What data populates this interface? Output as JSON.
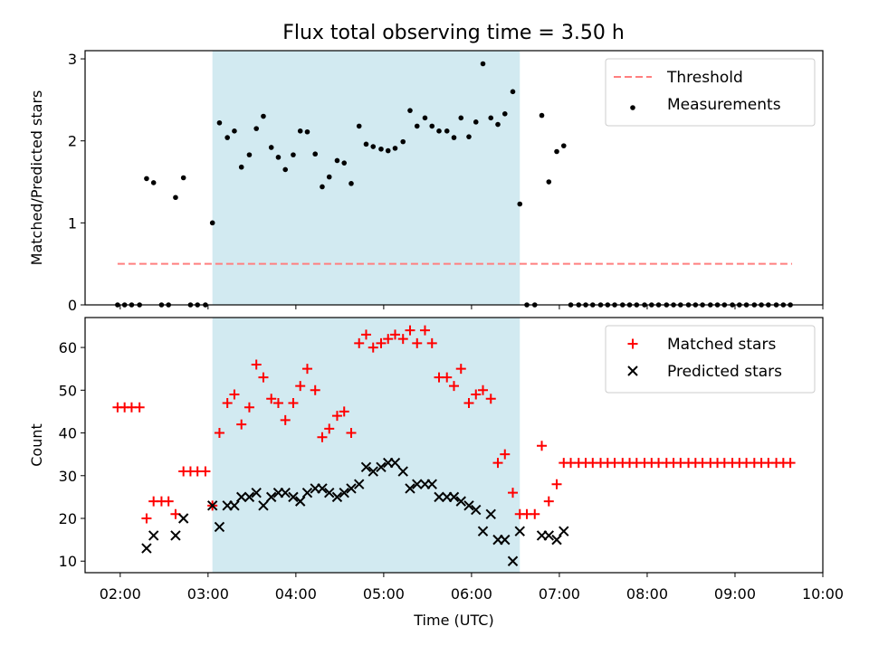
{
  "title": "Flux total observing time = 3.50 h",
  "colors": {
    "shade": "#add8e6",
    "threshold": "#ff7f7f",
    "matched": "#ff0000",
    "predicted": "#000000",
    "measurement": "#000000"
  },
  "chart_data": [
    {
      "type": "scatter",
      "ylabel": "Matched/Predicted stars",
      "xlim": [
        1.6,
        10.0
      ],
      "ylim": [
        0,
        3.1
      ],
      "yticks": [
        0,
        1,
        2,
        3
      ],
      "shaded_interval": [
        3.05,
        6.55
      ],
      "legend_position": "upper right",
      "threshold": {
        "name": "Threshold",
        "y": 0.5,
        "x_range": [
          1.97,
          9.65
        ]
      },
      "series": [
        {
          "name": "Measurements",
          "points": [
            [
              1.97,
              0
            ],
            [
              2.05,
              0
            ],
            [
              2.13,
              0
            ],
            [
              2.22,
              0
            ],
            [
              2.3,
              1.54
            ],
            [
              2.38,
              1.49
            ],
            [
              2.47,
              0
            ],
            [
              2.55,
              0
            ],
            [
              2.63,
              1.31
            ],
            [
              2.72,
              1.55
            ],
            [
              2.8,
              0
            ],
            [
              2.88,
              0
            ],
            [
              2.97,
              0
            ],
            [
              3.05,
              1.0
            ],
            [
              3.13,
              2.22
            ],
            [
              3.22,
              2.04
            ],
            [
              3.3,
              2.12
            ],
            [
              3.38,
              1.68
            ],
            [
              3.47,
              1.83
            ],
            [
              3.55,
              2.15
            ],
            [
              3.63,
              2.3
            ],
            [
              3.72,
              1.92
            ],
            [
              3.8,
              1.8
            ],
            [
              3.88,
              1.65
            ],
            [
              3.97,
              1.83
            ],
            [
              4.05,
              2.12
            ],
            [
              4.13,
              2.11
            ],
            [
              4.22,
              1.84
            ],
            [
              4.3,
              1.44
            ],
            [
              4.38,
              1.56
            ],
            [
              4.47,
              1.76
            ],
            [
              4.55,
              1.73
            ],
            [
              4.63,
              1.48
            ],
            [
              4.72,
              2.18
            ],
            [
              4.8,
              1.96
            ],
            [
              4.88,
              1.93
            ],
            [
              4.97,
              1.9
            ],
            [
              5.05,
              1.88
            ],
            [
              5.13,
              1.91
            ],
            [
              5.22,
              1.99
            ],
            [
              5.3,
              2.37
            ],
            [
              5.38,
              2.18
            ],
            [
              5.47,
              2.28
            ],
            [
              5.55,
              2.18
            ],
            [
              5.63,
              2.12
            ],
            [
              5.72,
              2.12
            ],
            [
              5.8,
              2.04
            ],
            [
              5.88,
              2.28
            ],
            [
              5.97,
              2.05
            ],
            [
              6.05,
              2.23
            ],
            [
              6.13,
              2.94
            ],
            [
              6.22,
              2.28
            ],
            [
              6.3,
              2.2
            ],
            [
              6.38,
              2.33
            ],
            [
              6.47,
              2.6
            ],
            [
              6.55,
              1.23
            ],
            [
              6.63,
              0
            ],
            [
              6.72,
              0
            ],
            [
              6.8,
              2.31
            ],
            [
              6.88,
              1.5
            ],
            [
              6.97,
              1.87
            ],
            [
              7.05,
              1.94
            ],
            [
              7.13,
              0
            ],
            [
              7.22,
              0
            ],
            [
              7.3,
              0
            ],
            [
              7.38,
              0
            ],
            [
              7.47,
              0
            ],
            [
              7.55,
              0
            ],
            [
              7.63,
              0
            ],
            [
              7.72,
              0
            ],
            [
              7.8,
              0
            ],
            [
              7.88,
              0
            ],
            [
              7.97,
              0
            ],
            [
              8.05,
              0
            ],
            [
              8.13,
              0
            ],
            [
              8.22,
              0
            ],
            [
              8.3,
              0
            ],
            [
              8.38,
              0
            ],
            [
              8.47,
              0
            ],
            [
              8.55,
              0
            ],
            [
              8.63,
              0
            ],
            [
              8.72,
              0
            ],
            [
              8.8,
              0
            ],
            [
              8.88,
              0
            ],
            [
              8.97,
              0
            ],
            [
              9.05,
              0
            ],
            [
              9.13,
              0
            ],
            [
              9.22,
              0
            ],
            [
              9.3,
              0
            ],
            [
              9.38,
              0
            ],
            [
              9.47,
              0
            ],
            [
              9.55,
              0
            ],
            [
              9.63,
              0
            ]
          ]
        }
      ]
    },
    {
      "type": "scatter",
      "xlabel": "Time (UTC)",
      "ylabel": "Count",
      "xlim": [
        1.6,
        10.0
      ],
      "ylim": [
        7.3,
        67.0
      ],
      "yticks": [
        10,
        20,
        30,
        40,
        50,
        60
      ],
      "xticks": [
        2,
        3,
        4,
        5,
        6,
        7,
        8,
        9,
        10
      ],
      "xtick_labels": [
        "02:00",
        "03:00",
        "04:00",
        "05:00",
        "06:00",
        "07:00",
        "08:00",
        "09:00",
        "10:00"
      ],
      "shaded_interval": [
        3.05,
        6.55
      ],
      "legend_position": "upper right",
      "series": [
        {
          "name": "Matched stars",
          "marker": "plus",
          "points": [
            [
              1.97,
              46
            ],
            [
              2.05,
              46
            ],
            [
              2.13,
              46
            ],
            [
              2.22,
              46
            ],
            [
              2.3,
              20
            ],
            [
              2.38,
              24
            ],
            [
              2.47,
              24
            ],
            [
              2.55,
              24
            ],
            [
              2.63,
              21
            ],
            [
              2.72,
              31
            ],
            [
              2.8,
              31
            ],
            [
              2.88,
              31
            ],
            [
              2.97,
              31
            ],
            [
              3.05,
              23
            ],
            [
              3.13,
              40
            ],
            [
              3.22,
              47
            ],
            [
              3.3,
              49
            ],
            [
              3.38,
              42
            ],
            [
              3.47,
              46
            ],
            [
              3.55,
              56
            ],
            [
              3.63,
              53
            ],
            [
              3.72,
              48
            ],
            [
              3.8,
              47
            ],
            [
              3.88,
              43
            ],
            [
              3.97,
              47
            ],
            [
              4.05,
              51
            ],
            [
              4.13,
              55
            ],
            [
              4.22,
              50
            ],
            [
              4.3,
              39
            ],
            [
              4.38,
              41
            ],
            [
              4.47,
              44
            ],
            [
              4.55,
              45
            ],
            [
              4.63,
              40
            ],
            [
              4.72,
              61
            ],
            [
              4.8,
              63
            ],
            [
              4.88,
              60
            ],
            [
              4.97,
              61
            ],
            [
              5.05,
              62
            ],
            [
              5.13,
              63
            ],
            [
              5.22,
              62
            ],
            [
              5.3,
              64
            ],
            [
              5.38,
              61
            ],
            [
              5.47,
              64
            ],
            [
              5.55,
              61
            ],
            [
              5.63,
              53
            ],
            [
              5.72,
              53
            ],
            [
              5.8,
              51
            ],
            [
              5.88,
              55
            ],
            [
              5.97,
              47
            ],
            [
              6.05,
              49
            ],
            [
              6.13,
              50
            ],
            [
              6.22,
              48
            ],
            [
              6.3,
              33
            ],
            [
              6.38,
              35
            ],
            [
              6.47,
              26
            ],
            [
              6.55,
              21
            ],
            [
              6.63,
              21
            ],
            [
              6.72,
              21
            ],
            [
              6.8,
              37
            ],
            [
              6.88,
              24
            ],
            [
              6.97,
              28
            ],
            [
              7.05,
              33
            ],
            [
              7.13,
              33
            ],
            [
              7.22,
              33
            ],
            [
              7.3,
              33
            ],
            [
              7.38,
              33
            ],
            [
              7.47,
              33
            ],
            [
              7.55,
              33
            ],
            [
              7.63,
              33
            ],
            [
              7.72,
              33
            ],
            [
              7.8,
              33
            ],
            [
              7.88,
              33
            ],
            [
              7.97,
              33
            ],
            [
              8.05,
              33
            ],
            [
              8.13,
              33
            ],
            [
              8.22,
              33
            ],
            [
              8.3,
              33
            ],
            [
              8.38,
              33
            ],
            [
              8.47,
              33
            ],
            [
              8.55,
              33
            ],
            [
              8.63,
              33
            ],
            [
              8.72,
              33
            ],
            [
              8.8,
              33
            ],
            [
              8.88,
              33
            ],
            [
              8.97,
              33
            ],
            [
              9.05,
              33
            ],
            [
              9.13,
              33
            ],
            [
              9.22,
              33
            ],
            [
              9.3,
              33
            ],
            [
              9.38,
              33
            ],
            [
              9.47,
              33
            ],
            [
              9.55,
              33
            ],
            [
              9.63,
              33
            ]
          ]
        },
        {
          "name": "Predicted stars",
          "marker": "x",
          "points": [
            [
              2.3,
              13
            ],
            [
              2.38,
              16
            ],
            [
              2.63,
              16
            ],
            [
              2.72,
              20
            ],
            [
              3.05,
              23
            ],
            [
              3.13,
              18
            ],
            [
              3.22,
              23
            ],
            [
              3.3,
              23
            ],
            [
              3.38,
              25
            ],
            [
              3.47,
              25
            ],
            [
              3.55,
              26
            ],
            [
              3.63,
              23
            ],
            [
              3.72,
              25
            ],
            [
              3.8,
              26
            ],
            [
              3.88,
              26
            ],
            [
              3.97,
              25
            ],
            [
              4.05,
              24
            ],
            [
              4.13,
              26
            ],
            [
              4.22,
              27
            ],
            [
              4.3,
              27
            ],
            [
              4.38,
              26
            ],
            [
              4.47,
              25
            ],
            [
              4.55,
              26
            ],
            [
              4.63,
              27
            ],
            [
              4.72,
              28
            ],
            [
              4.8,
              32
            ],
            [
              4.88,
              31
            ],
            [
              4.97,
              32
            ],
            [
              5.05,
              33
            ],
            [
              5.13,
              33
            ],
            [
              5.22,
              31
            ],
            [
              5.3,
              27
            ],
            [
              5.38,
              28
            ],
            [
              5.47,
              28
            ],
            [
              5.55,
              28
            ],
            [
              5.63,
              25
            ],
            [
              5.72,
              25
            ],
            [
              5.8,
              25
            ],
            [
              5.88,
              24
            ],
            [
              5.97,
              23
            ],
            [
              6.05,
              22
            ],
            [
              6.13,
              17
            ],
            [
              6.22,
              21
            ],
            [
              6.3,
              15
            ],
            [
              6.38,
              15
            ],
            [
              6.47,
              10
            ],
            [
              6.55,
              17
            ],
            [
              6.8,
              16
            ],
            [
              6.88,
              16
            ],
            [
              6.97,
              15
            ],
            [
              7.05,
              17
            ]
          ]
        }
      ]
    }
  ]
}
